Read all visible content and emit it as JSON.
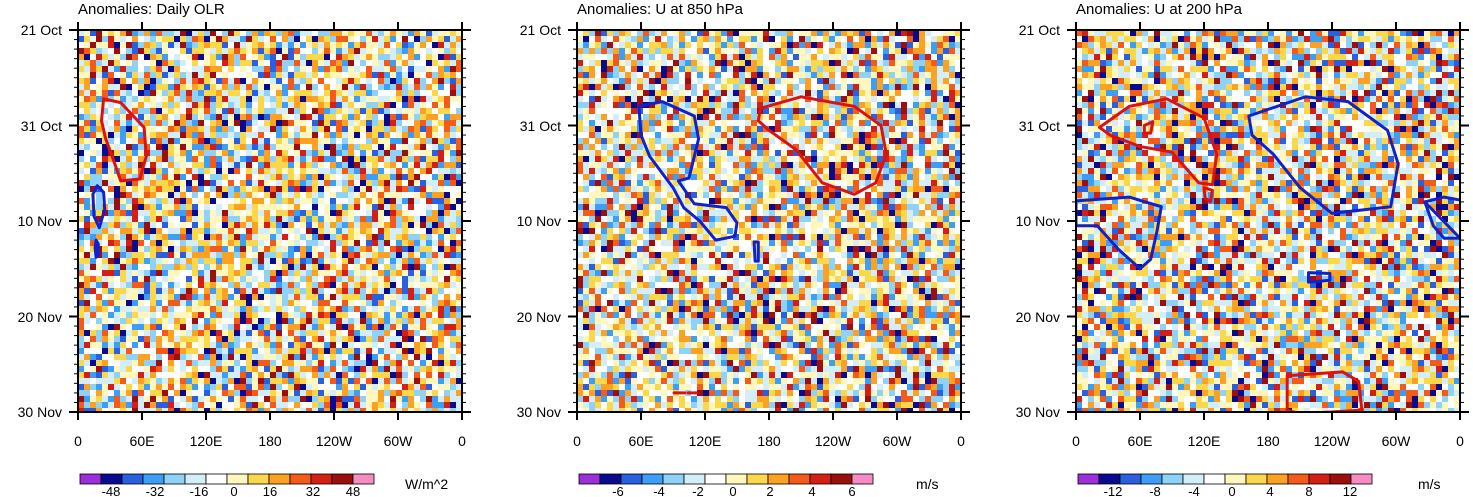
{
  "chart_data": [
    {
      "type": "heatmap",
      "title": "Anomalies: Daily OLR",
      "x_ticks": [
        "0",
        "60E",
        "120E",
        "180",
        "120W",
        "60W",
        "0"
      ],
      "y_ticks": [
        "21 Oct",
        "31 Oct",
        "10 Nov",
        "20 Nov",
        "30 Nov"
      ],
      "xlim": [
        0,
        360
      ],
      "ylim": [
        "21 Oct",
        "30 Nov"
      ],
      "colorbar": {
        "labels": [
          "-48",
          "-32",
          "-16",
          "0",
          "16",
          "32",
          "48"
        ],
        "units": "W/m^2",
        "range": [
          -56,
          56
        ]
      },
      "pattern": {
        "seed": 11,
        "sx": 0.022,
        "sy": 0.055,
        "band": 0.15,
        "tilt": -1.1
      },
      "contours": [
        {
          "color": "#dd1111",
          "lon_lat_days": [
            [
              24,
              27.2
            ],
            [
              40,
              27.6
            ],
            [
              62,
              30.2
            ],
            [
              64,
              33.2
            ],
            [
              58,
              35.6
            ],
            [
              40,
              35.8
            ],
            [
              32,
              33.2
            ],
            [
              26,
              31.4
            ],
            [
              22,
              29.5
            ]
          ]
        },
        {
          "color": "#1122cc",
          "lon_lat_days": [
            [
              18,
              36.3
            ],
            [
              24,
              37.0
            ],
            [
              25,
              38.8
            ],
            [
              20,
              40.7
            ],
            [
              15,
              39.5
            ],
            [
              14,
              37.2
            ]
          ]
        },
        {
          "color": "#1122cc",
          "lon_lat_days": [
            [
              17,
              42.0
            ],
            [
              19,
              42.4
            ],
            [
              19,
              43.6
            ],
            [
              17,
              43.8
            ],
            [
              16,
              42.8
            ]
          ]
        }
      ]
    },
    {
      "type": "heatmap",
      "title": "Anomalies: U at 850 hPa",
      "x_ticks": [
        "0",
        "60E",
        "120E",
        "180",
        "120W",
        "60W",
        "0"
      ],
      "y_ticks": [
        "21 Oct",
        "31 Oct",
        "10 Nov",
        "20 Nov",
        "30 Nov"
      ],
      "xlim": [
        0,
        360
      ],
      "ylim": [
        "21 Oct",
        "30 Nov"
      ],
      "colorbar": {
        "labels": [
          "-6",
          "-4",
          "-2",
          "0",
          "2",
          "4",
          "6"
        ],
        "units": "m/s",
        "range": [
          -7,
          7
        ]
      },
      "pattern": {
        "seed": 37,
        "sx": 0.028,
        "sy": 0.05,
        "band": 0.0,
        "tilt": -0.6
      },
      "contours": [
        {
          "color": "#1122cc",
          "lon_lat_days": [
            [
              58,
              28.0
            ],
            [
              80,
              27.5
            ],
            [
              110,
              29.0
            ],
            [
              114,
              31.4
            ],
            [
              105,
              35.5
            ],
            [
              95,
              35.8
            ],
            [
              110,
              38.2
            ],
            [
              140,
              38.6
            ],
            [
              150,
              40.2
            ],
            [
              148,
              41.6
            ],
            [
              130,
              42.0
            ],
            [
              115,
              40.0
            ],
            [
              100,
              38.6
            ],
            [
              90,
              36.5
            ],
            [
              80,
              35.0
            ],
            [
              68,
              33.2
            ],
            [
              60,
              31.0
            ]
          ]
        },
        {
          "color": "#dd1111",
          "lon_lat_days": [
            [
              172,
              28.2
            ],
            [
              210,
              27.0
            ],
            [
              260,
              28.0
            ],
            [
              285,
              30.0
            ],
            [
              290,
              33.0
            ],
            [
              280,
              36.0
            ],
            [
              260,
              37.2
            ],
            [
              230,
              36.0
            ],
            [
              205,
              32.5
            ],
            [
              180,
              30.5
            ],
            [
              170,
              29.5
            ]
          ]
        },
        {
          "color": "#1122cc",
          "lon_lat_days": [
            [
              166,
              42.2
            ],
            [
              170,
              42.2
            ],
            [
              170,
              44.2
            ],
            [
              167,
              44.2
            ]
          ]
        },
        {
          "color": "#dd1111",
          "lon_lat_days": [
            [
              91,
              58.0
            ],
            [
              101,
              58.0
            ]
          ]
        },
        {
          "color": "#dd1111",
          "lon_lat_days": [
            [
              104,
              58.0
            ],
            [
              112,
              58.0
            ]
          ]
        }
      ]
    },
    {
      "type": "heatmap",
      "title": "Anomalies: U at 200 hPa",
      "x_ticks": [
        "0",
        "60E",
        "120E",
        "180",
        "120W",
        "60W",
        "0"
      ],
      "y_ticks": [
        "21 Oct",
        "31 Oct",
        "10 Nov",
        "20 Nov",
        "30 Nov"
      ],
      "xlim": [
        0,
        360
      ],
      "ylim": [
        "21 Oct",
        "30 Nov"
      ],
      "colorbar": {
        "labels": [
          "-12",
          "-8",
          "-4",
          "0",
          "4",
          "8",
          "12"
        ],
        "units": "m/s",
        "range": [
          -14,
          14
        ]
      },
      "pattern": {
        "seed": 73,
        "sx": 0.03,
        "sy": 0.06,
        "band": 0.05,
        "tilt": 0.0
      },
      "contours": [
        {
          "color": "#dd1111",
          "lon_lat_days": [
            [
              22,
              30.2
            ],
            [
              50,
              28.0
            ],
            [
              85,
              27.2
            ],
            [
              120,
              29.2
            ],
            [
              132,
              33.0
            ],
            [
              128,
              36.2
            ],
            [
              115,
              36.0
            ],
            [
              90,
              32.8
            ],
            [
              60,
              32.2
            ],
            [
              32,
              31.0
            ]
          ]
        },
        {
          "color": "#dd1111",
          "lon_lat_days": [
            [
              64,
              30.0
            ],
            [
              72,
              29.6
            ],
            [
              70,
              30.8
            ],
            [
              64,
              30.8
            ]
          ]
        },
        {
          "color": "#dd1111",
          "lon_lat_days": [
            [
              120,
              36.5
            ],
            [
              128,
              36.8
            ],
            [
              126,
              38.0
            ],
            [
              121,
              37.6
            ]
          ]
        },
        {
          "color": "#1122cc",
          "lon_lat_days": [
            [
              162,
              29.0
            ],
            [
              215,
              27.0
            ],
            [
              255,
              27.5
            ],
            [
              292,
              30.5
            ],
            [
              302,
              34.0
            ],
            [
              295,
              38.5
            ],
            [
              240,
              39.2
            ],
            [
              210,
              36.5
            ],
            [
              185,
              33.0
            ],
            [
              165,
              31.0
            ]
          ]
        },
        {
          "color": "#1122cc",
          "lon_lat_days": [
            [
              0,
              37.9
            ],
            [
              50,
              37.5
            ],
            [
              80,
              38.5
            ],
            [
              76,
              41.0
            ],
            [
              70,
              44.0
            ],
            [
              60,
              45.0
            ],
            [
              40,
              43.0
            ],
            [
              20,
              40.5
            ],
            [
              0,
              40.5
            ]
          ]
        },
        {
          "color": "#1122cc",
          "lon_lat_days": [
            [
              327,
              38.0
            ],
            [
              345,
              37.5
            ],
            [
              360,
              37.8
            ]
          ]
        },
        {
          "color": "#1122cc",
          "lon_lat_days": [
            [
              327,
              38.0
            ],
            [
              335,
              40.5
            ],
            [
              345,
              41.8
            ],
            [
              360,
              41.8
            ]
          ]
        },
        {
          "color": "#1122cc",
          "lon_lat_days": [
            [
              218,
              45.4
            ],
            [
              238,
              45.5
            ],
            [
              238,
              46.2
            ],
            [
              218,
              46.4
            ]
          ]
        },
        {
          "color": "#dd1111",
          "lon_lat_days": [
            [
              198,
              56.2
            ],
            [
              250,
              55.8
            ],
            [
              265,
              56.8
            ],
            [
              268,
              59.8
            ],
            [
              210,
              60.2
            ],
            [
              198,
              59.8
            ]
          ]
        }
      ]
    }
  ],
  "palette": [
    "#9b30d8",
    "#0a0a8e",
    "#2a5fe0",
    "#3d9ef5",
    "#8ed2f8",
    "#d3eef8",
    "#ffffff",
    "#fff7bd",
    "#fbd74c",
    "#fca121",
    "#f55b18",
    "#d42014",
    "#9b0f0f",
    "#f58cc3"
  ]
}
